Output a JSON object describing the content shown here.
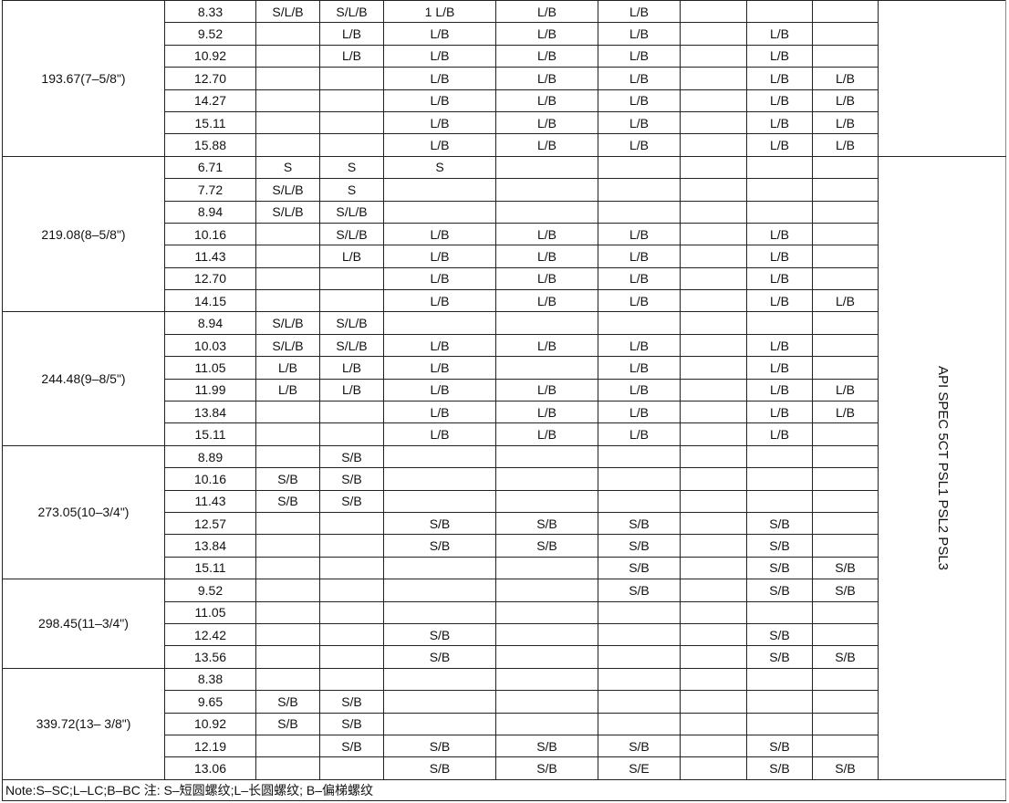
{
  "spec_label": "API SPEC 5CT PSL1 PSL2 PSL3",
  "note": "Note:S–SC;L–LC;B–BC 注: S–短圆螺纹;L–长圆螺纹; B–偏梯螺纹",
  "groups": [
    {
      "size": "193.67(7–5/8\")",
      "rows": [
        {
          "wall": "8.33",
          "cells": [
            "S/L/B",
            "S/L/B",
            "1 L/B",
            "L/B",
            "L/B",
            "",
            "",
            ""
          ]
        },
        {
          "wall": "9.52",
          "cells": [
            "",
            "L/B",
            "L/B",
            "L/B",
            "L/B",
            "",
            "L/B",
            ""
          ]
        },
        {
          "wall": "10.92",
          "cells": [
            "",
            "L/B",
            "L/B",
            "L/B",
            "L/B",
            "",
            "L/B",
            ""
          ]
        },
        {
          "wall": "12.70",
          "cells": [
            "",
            "",
            "L/B",
            "L/B",
            "L/B",
            "",
            "L/B",
            "L/B"
          ]
        },
        {
          "wall": "14.27",
          "cells": [
            "",
            "",
            "L/B",
            "L/B",
            "L/B",
            "",
            "L/B",
            "L/B"
          ]
        },
        {
          "wall": "15.11",
          "cells": [
            "",
            "",
            "L/B",
            "L/B",
            "L/B",
            "",
            "L/B",
            "L/B"
          ]
        },
        {
          "wall": "15.88",
          "cells": [
            "",
            "",
            "L/B",
            "L/B",
            "L/B",
            "",
            "L/B",
            "L/B"
          ]
        }
      ]
    },
    {
      "size": "219.08(8–5/8\")",
      "rows": [
        {
          "wall": "6.71",
          "cells": [
            "S",
            "S",
            "S",
            "",
            "",
            "",
            "",
            ""
          ]
        },
        {
          "wall": "7.72",
          "cells": [
            "S/L/B",
            "S",
            "",
            "",
            "",
            "",
            "",
            ""
          ]
        },
        {
          "wall": "8.94",
          "cells": [
            "S/L/B",
            "S/L/B",
            "",
            "",
            "",
            "",
            "",
            ""
          ]
        },
        {
          "wall": "10.16",
          "cells": [
            "",
            "S/L/B",
            "L/B",
            "L/B",
            "L/B",
            "",
            "L/B",
            ""
          ]
        },
        {
          "wall": "11.43",
          "cells": [
            "",
            "L/B",
            "L/B",
            "L/B",
            "L/B",
            "",
            "L/B",
            ""
          ]
        },
        {
          "wall": "12.70",
          "cells": [
            "",
            "",
            "L/B",
            "L/B",
            "L/B",
            "",
            "L/B",
            ""
          ]
        },
        {
          "wall": "14.15",
          "cells": [
            "",
            "",
            "L/B",
            "L/B",
            "L/B",
            "",
            "L/B",
            "L/B"
          ]
        }
      ]
    },
    {
      "size": "244.48(9–8/5\")",
      "rows": [
        {
          "wall": "8.94",
          "cells": [
            "S/L/B",
            "S/L/B",
            "",
            "",
            "",
            "",
            "",
            ""
          ]
        },
        {
          "wall": "10.03",
          "cells": [
            "S/L/B",
            "S/L/B",
            "L/B",
            "L/B",
            "L/B",
            "",
            "L/B",
            ""
          ]
        },
        {
          "wall": "11.05",
          "cells": [
            "L/B",
            "L/B",
            "L/B",
            "",
            "L/B",
            "",
            "L/B",
            ""
          ]
        },
        {
          "wall": "11.99",
          "cells": [
            "L/B",
            "L/B",
            "L/B",
            "L/B",
            "L/B",
            "",
            "L/B",
            "L/B"
          ]
        },
        {
          "wall": "13.84",
          "cells": [
            "",
            "",
            "L/B",
            "L/B",
            "L/B",
            "",
            "L/B",
            "L/B"
          ]
        },
        {
          "wall": "15.11",
          "cells": [
            "",
            "",
            "L/B",
            "L/B",
            "L/B",
            "",
            "L/B",
            ""
          ]
        }
      ]
    },
    {
      "size": "273.05(10–3/4\")",
      "rows": [
        {
          "wall": "8.89",
          "cells": [
            "",
            "S/B",
            "",
            "",
            "",
            "",
            "",
            ""
          ]
        },
        {
          "wall": "10.16",
          "cells": [
            "S/B",
            "S/B",
            "",
            "",
            "",
            "",
            "",
            ""
          ]
        },
        {
          "wall": "11.43",
          "cells": [
            "S/B",
            "S/B",
            "",
            "",
            "",
            "",
            "",
            ""
          ]
        },
        {
          "wall": "12.57",
          "cells": [
            "",
            "",
            "S/B",
            "S/B",
            "S/B",
            "",
            "S/B",
            ""
          ]
        },
        {
          "wall": "13.84",
          "cells": [
            "",
            "",
            "S/B",
            "S/B",
            "S/B",
            "",
            "S/B",
            ""
          ]
        },
        {
          "wall": "15.11",
          "cells": [
            "",
            "",
            "",
            "",
            "S/B",
            "",
            "S/B",
            "S/B"
          ]
        }
      ]
    },
    {
      "size": "298.45(11–3/4\")",
      "rows": [
        {
          "wall": "9.52",
          "cells": [
            "",
            "",
            "",
            "",
            "S/B",
            "",
            "S/B",
            "S/B"
          ]
        },
        {
          "wall": "11.05",
          "cells": [
            "",
            "",
            "",
            "",
            "",
            "",
            "",
            ""
          ]
        },
        {
          "wall": "12.42",
          "cells": [
            "",
            "",
            "S/B",
            "",
            "",
            "",
            "S/B",
            ""
          ]
        },
        {
          "wall": "13.56",
          "cells": [
            "",
            "",
            "S/B",
            "",
            "",
            "",
            "S/B",
            "S/B"
          ]
        }
      ]
    },
    {
      "size": "339.72(13– 3/8\")",
      "rows": [
        {
          "wall": "8.38",
          "cells": [
            "",
            "",
            "",
            "",
            "",
            "",
            "",
            ""
          ]
        },
        {
          "wall": "9.65",
          "cells": [
            "S/B",
            "S/B",
            "",
            "",
            "",
            "",
            "",
            ""
          ]
        },
        {
          "wall": "10.92",
          "cells": [
            "S/B",
            "S/B",
            "",
            "",
            "",
            "",
            "",
            ""
          ]
        },
        {
          "wall": "12.19",
          "cells": [
            "",
            "S/B",
            "S/B",
            "S/B",
            "S/B",
            "",
            "S/B",
            ""
          ]
        },
        {
          "wall": "13.06",
          "cells": [
            "",
            "",
            "S/B",
            "S/B",
            "S/E",
            "",
            "S/B",
            "S/B"
          ]
        }
      ]
    }
  ]
}
